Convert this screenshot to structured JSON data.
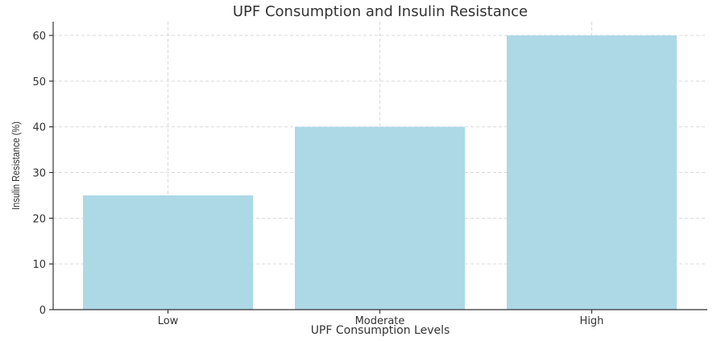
{
  "chart_data": {
    "type": "bar",
    "title": "UPF Consumption and Insulin Resistance",
    "xlabel": "UPF Consumption Levels",
    "ylabel": "Insulin Resistance (%)",
    "categories": [
      "Low",
      "Moderate",
      "High"
    ],
    "values": [
      25,
      40,
      60
    ],
    "ylim": [
      0,
      63
    ],
    "yticks": [
      0,
      10,
      20,
      30,
      40,
      50,
      60
    ],
    "bar_color": "#add8e6",
    "grid": true,
    "legend": "none"
  }
}
